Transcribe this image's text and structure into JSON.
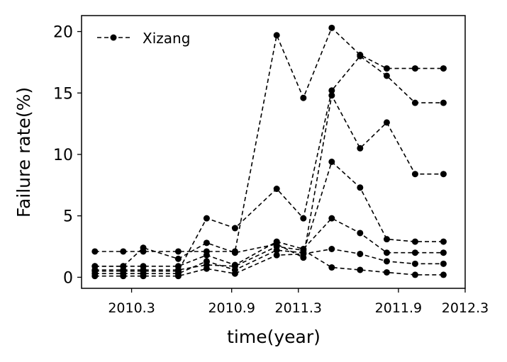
{
  "chart_data": {
    "type": "line",
    "xlabel": "time(year)",
    "ylabel": "Failure rate(%)",
    "xlim": [
      2010.0,
      2012.3
    ],
    "ylim": [
      -0.9,
      21.3
    ],
    "x_ticks": [
      2010.3,
      2010.9,
      2011.3,
      2011.9,
      2012.3
    ],
    "x_tick_labels": [
      "2010.3",
      "2010.9",
      "2011.3",
      "2011.9",
      "2012.3"
    ],
    "y_ticks": [
      0,
      5,
      10,
      15,
      20
    ],
    "y_tick_labels": [
      "0",
      "5",
      "10",
      "15",
      "20"
    ],
    "grid": false,
    "legend": {
      "position": "top-left",
      "entries": [
        "Xizang"
      ]
    },
    "marker_color": "#000000",
    "line_style": "dashed",
    "x": [
      2010.08,
      2010.25,
      2010.37,
      2010.58,
      2010.75,
      2010.92,
      2011.17,
      2011.33,
      2011.5,
      2011.67,
      2011.83,
      2012.0,
      2012.17
    ],
    "series": [
      {
        "name": "Xizang",
        "values": [
          2.1,
          2.1,
          2.1,
          2.1,
          2.1,
          2.1,
          19.7,
          14.6,
          20.3,
          18.1,
          17.0,
          17.0,
          17.0
        ]
      },
      {
        "values": [
          0.5,
          0.5,
          0.5,
          0.5,
          4.8,
          4.0,
          7.2,
          4.8,
          15.2,
          18.0,
          16.4,
          14.2,
          14.2
        ]
      },
      {
        "values": [
          0.9,
          0.9,
          2.4,
          1.5,
          2.8,
          2.0,
          2.7,
          1.6,
          14.8,
          10.5,
          12.6,
          8.4,
          8.4
        ]
      },
      {
        "values": [
          0.3,
          0.3,
          0.3,
          0.3,
          1.3,
          0.6,
          2.2,
          2.0,
          9.4,
          7.3,
          3.1,
          2.9,
          2.9
        ]
      },
      {
        "values": [
          0.9,
          0.9,
          0.9,
          0.9,
          1.8,
          1.0,
          2.9,
          2.3,
          4.8,
          3.6,
          2.0,
          2.0,
          2.0
        ]
      },
      {
        "values": [
          0.1,
          0.1,
          0.1,
          0.1,
          0.7,
          0.3,
          1.8,
          1.9,
          2.3,
          1.9,
          1.3,
          1.1,
          1.1
        ]
      },
      {
        "values": [
          0.6,
          0.6,
          0.6,
          0.6,
          1.0,
          0.9,
          2.5,
          2.2,
          0.8,
          0.6,
          0.4,
          0.2,
          0.2
        ]
      }
    ]
  }
}
